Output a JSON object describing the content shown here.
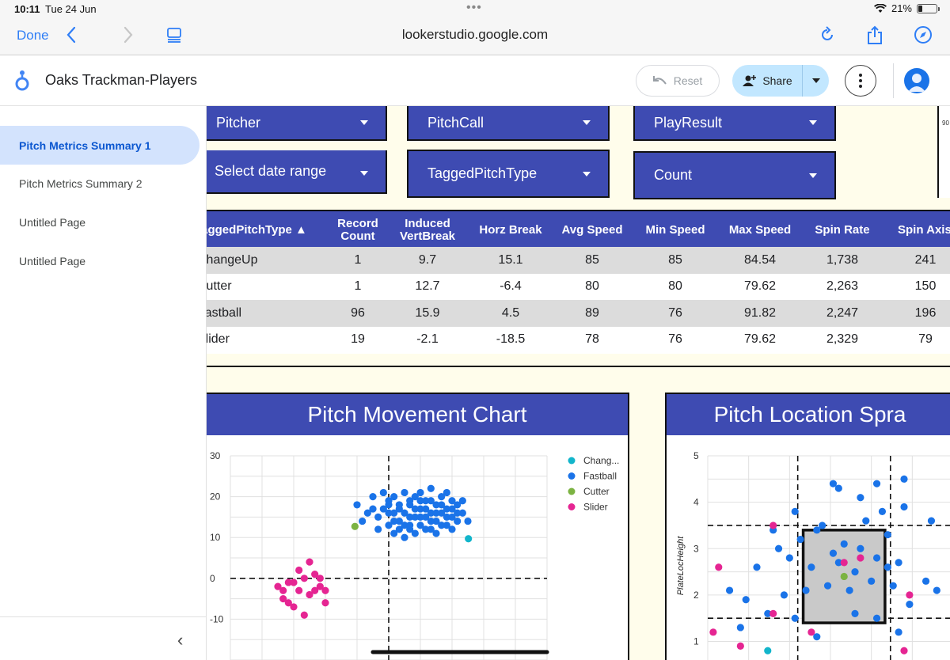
{
  "status_bar": {
    "time": "10:11",
    "date": "Tue 24 Jun",
    "battery": "21%",
    "battery_level": 0.21
  },
  "browser": {
    "done_label": "Done",
    "url": "lookerstudio.google.com"
  },
  "app": {
    "title": "Oaks Trackman-Players",
    "reset_label": "Reset",
    "share_label": "Share"
  },
  "sidebar": {
    "items": [
      {
        "label": "Pitch Metrics Summary 1",
        "active": true
      },
      {
        "label": "Pitch Metrics Summary 2",
        "active": false
      },
      {
        "label": "Untitled Page",
        "active": false
      },
      {
        "label": "Untitled Page",
        "active": false
      }
    ]
  },
  "filters": {
    "pitcher": "Pitcher",
    "pitch_call": "PitchCall",
    "play_result": "PlayResult",
    "date_range": "Select date range",
    "tagged_pitch_type": "TaggedPitchType",
    "count": "Count"
  },
  "mini_chart": {
    "tick": "90"
  },
  "table": {
    "headers": [
      "TaggedPitchType ▲",
      "Record Count",
      "Induced VertBreak",
      "Horz Break",
      "Avg Speed",
      "Min Speed",
      "Max Speed",
      "Spin Rate",
      "Spin Axis"
    ],
    "rows": [
      [
        "ChangeUp",
        "1",
        "9.7",
        "15.1",
        "85",
        "85",
        "84.54",
        "1,738",
        "241"
      ],
      [
        "Cutter",
        "1",
        "12.7",
        "-6.4",
        "80",
        "80",
        "79.62",
        "2,263",
        "150"
      ],
      [
        "Fastball",
        "96",
        "15.9",
        "4.5",
        "89",
        "76",
        "91.82",
        "2,247",
        "196"
      ],
      [
        "Slider",
        "19",
        "-2.1",
        "-18.5",
        "78",
        "76",
        "79.62",
        "2,329",
        "79"
      ]
    ]
  },
  "chart_data": [
    {
      "type": "scatter",
      "title": "Pitch Movement Chart",
      "ylim": [
        -20,
        30
      ],
      "yticks": [
        30,
        20,
        10,
        0,
        -10
      ],
      "xlim": [
        -30,
        30
      ],
      "legend_position": "top-right",
      "grid": true,
      "series": [
        {
          "name": "Chang...",
          "color": "#12b5cb",
          "points": [
            [
              15.1,
              9.7
            ]
          ]
        },
        {
          "name": "Fastball",
          "color": "#1a73e8",
          "points": [
            [
              -6,
              18
            ],
            [
              -5,
              14
            ],
            [
              -4,
              16
            ],
            [
              -3,
              20
            ],
            [
              -2,
              15
            ],
            [
              -1,
              17
            ],
            [
              0,
              13
            ],
            [
              0,
              19
            ],
            [
              1,
              16
            ],
            [
              1,
              11
            ],
            [
              2,
              18
            ],
            [
              2,
              14
            ],
            [
              3,
              21
            ],
            [
              3,
              16
            ],
            [
              4,
              12
            ],
            [
              4,
              18
            ],
            [
              5,
              15
            ],
            [
              5,
              20
            ],
            [
              6,
              17
            ],
            [
              6,
              13
            ],
            [
              7,
              19
            ],
            [
              7,
              15
            ],
            [
              8,
              22
            ],
            [
              8,
              16
            ],
            [
              9,
              18
            ],
            [
              9,
              14
            ],
            [
              10,
              20
            ],
            [
              10,
              16
            ],
            [
              11,
              17
            ],
            [
              11,
              13
            ],
            [
              12,
              19
            ],
            [
              12,
              15
            ],
            [
              13,
              18
            ],
            [
              14,
              16
            ],
            [
              15,
              14
            ],
            [
              -2,
              12
            ],
            [
              -1,
              21
            ],
            [
              0,
              16
            ],
            [
              1,
              20
            ],
            [
              2,
              12
            ],
            [
              3,
              13
            ],
            [
              4,
              15
            ],
            [
              5,
              17
            ],
            [
              6,
              21
            ],
            [
              7,
              12
            ],
            [
              8,
              19
            ],
            [
              9,
              11
            ],
            [
              10,
              13
            ],
            [
              11,
              21
            ],
            [
              12,
              17
            ],
            [
              13,
              14
            ],
            [
              14,
              19
            ],
            [
              2,
              17
            ],
            [
              4,
              19
            ],
            [
              6,
              15
            ],
            [
              8,
              14
            ],
            [
              10,
              18
            ],
            [
              5,
              11
            ],
            [
              7,
              17
            ],
            [
              9,
              16
            ],
            [
              3,
              10
            ],
            [
              1,
              14
            ],
            [
              0,
              18
            ],
            [
              -3,
              17
            ],
            [
              6,
              19
            ],
            [
              8,
              12
            ],
            [
              12,
              12
            ],
            [
              11,
              15
            ],
            [
              13,
              16
            ],
            [
              4,
              13
            ]
          ]
        },
        {
          "name": "Cutter",
          "color": "#7cb342",
          "points": [
            [
              -6.4,
              12.7
            ]
          ]
        },
        {
          "name": "Slider",
          "color": "#e52592",
          "points": [
            [
              -21,
              -2
            ],
            [
              -20,
              -5
            ],
            [
              -19,
              -1
            ],
            [
              -18,
              -7
            ],
            [
              -17,
              -3
            ],
            [
              -16,
              0
            ],
            [
              -15,
              -4
            ],
            [
              -14,
              1
            ],
            [
              -13,
              -2
            ],
            [
              -12,
              -6
            ],
            [
              -16,
              -9
            ],
            [
              -19,
              -6
            ],
            [
              -14,
              -3
            ],
            [
              -17,
              2
            ],
            [
              -15,
              4
            ],
            [
              -18,
              -1
            ],
            [
              -13,
              0
            ],
            [
              -12,
              -3
            ],
            [
              -20,
              -3
            ]
          ]
        }
      ]
    },
    {
      "type": "scatter",
      "title": "Pitch Location Spra",
      "ylabel": "PlateLocHeight",
      "ylim": [
        0.6,
        5
      ],
      "yticks": [
        5,
        4,
        3,
        2,
        1
      ],
      "xlim": [
        -2.5,
        2
      ],
      "grid": true,
      "series": [
        {
          "name": "Fastball",
          "color": "#1a73e8",
          "points": [
            [
              -0.2,
              4.4
            ],
            [
              -0.1,
              4.3
            ],
            [
              0.3,
              4.1
            ],
            [
              0.6,
              4.4
            ],
            [
              1.1,
              4.5
            ],
            [
              -0.9,
              3.8
            ],
            [
              -1.2,
              3.0
            ],
            [
              -1.0,
              2.8
            ],
            [
              -0.8,
              3.2
            ],
            [
              -0.6,
              2.6
            ],
            [
              -0.4,
              3.5
            ],
            [
              -0.2,
              2.9
            ],
            [
              0.0,
              3.1
            ],
            [
              0.2,
              2.5
            ],
            [
              0.4,
              3.6
            ],
            [
              0.6,
              2.8
            ],
            [
              0.8,
              3.3
            ],
            [
              1.0,
              2.7
            ],
            [
              1.1,
              3.9
            ],
            [
              -0.3,
              2.2
            ],
            [
              0.1,
              2.1
            ],
            [
              0.5,
              2.3
            ],
            [
              0.9,
              2.2
            ],
            [
              -0.7,
              2.1
            ],
            [
              -1.6,
              2.6
            ],
            [
              -1.8,
              1.9
            ],
            [
              -1.4,
              1.6
            ],
            [
              -1.9,
              1.3
            ],
            [
              -2.1,
              2.1
            ],
            [
              -1.1,
              2.0
            ],
            [
              0.2,
              1.6
            ],
            [
              0.6,
              1.5
            ],
            [
              1.0,
              1.2
            ],
            [
              -0.5,
              1.1
            ],
            [
              1.5,
              2.3
            ],
            [
              1.7,
              2.1
            ],
            [
              1.6,
              3.6
            ],
            [
              0.7,
              3.8
            ],
            [
              -0.5,
              3.4
            ],
            [
              0.3,
              3.0
            ],
            [
              -0.1,
              2.7
            ],
            [
              0.8,
              2.6
            ],
            [
              -1.3,
              3.4
            ],
            [
              1.2,
              1.8
            ],
            [
              -0.9,
              1.5
            ]
          ]
        },
        {
          "name": "Cutter",
          "color": "#7cb342",
          "points": [
            [
              0.0,
              2.4
            ]
          ]
        },
        {
          "name": "Slider",
          "color": "#e52592",
          "points": [
            [
              -2.3,
              2.6
            ],
            [
              -1.3,
              3.5
            ],
            [
              -0.6,
              1.2
            ],
            [
              0.3,
              2.8
            ],
            [
              1.2,
              2.0
            ],
            [
              0.0,
              2.7
            ],
            [
              -2.4,
              1.2
            ],
            [
              -1.9,
              0.9
            ],
            [
              -1.3,
              1.6
            ],
            [
              1.1,
              0.8
            ]
          ]
        },
        {
          "name": "Chang...",
          "color": "#12b5cb",
          "points": [
            [
              -1.4,
              0.8
            ]
          ]
        }
      ]
    }
  ]
}
